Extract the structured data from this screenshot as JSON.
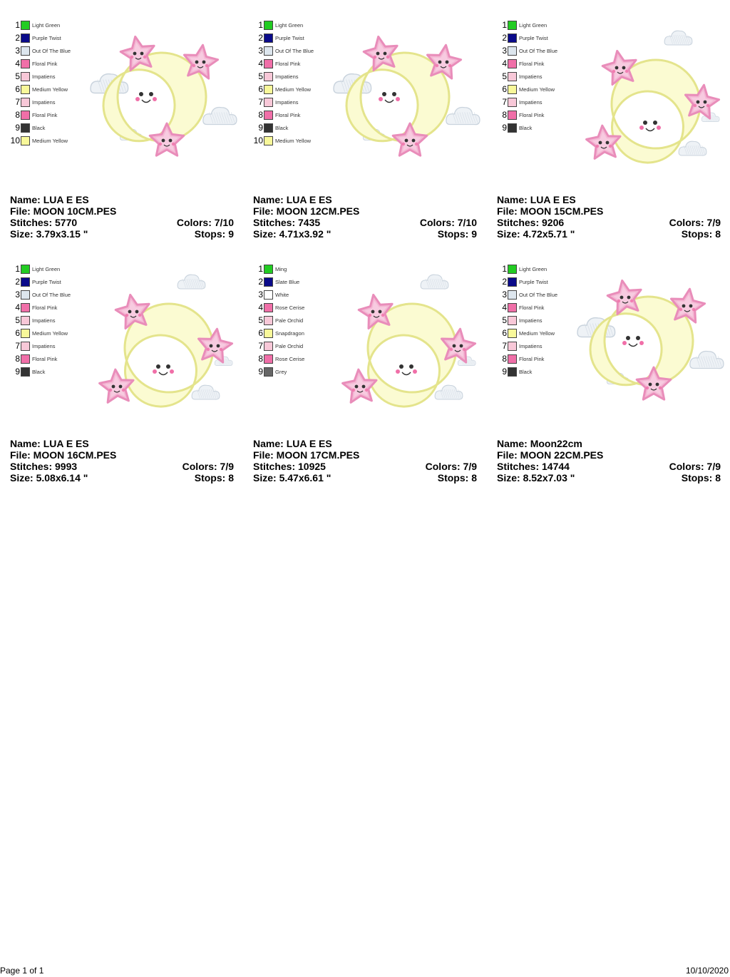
{
  "cards": [
    {
      "name": "LUA E ES",
      "file": "MOON 10CM.PES",
      "stitches": "5770",
      "size": "3.79x3.15 \"",
      "colors": "7/10",
      "stops": "9",
      "art": "cw",
      "threads": [
        {
          "num": "1",
          "name": "Light Green",
          "color": "#22cc22"
        },
        {
          "num": "2",
          "name": "Purple Twist",
          "color": "#0a0a8a"
        },
        {
          "num": "3",
          "name": "Out Of The Blue",
          "color": "#dde6ee"
        },
        {
          "num": "4",
          "name": "Floral Pink",
          "color": "#f06fa8"
        },
        {
          "num": "5",
          "name": "Impatiens",
          "color": "#f8c8d8"
        },
        {
          "num": "6",
          "name": "Medium Yellow",
          "color": "#f8f89a"
        },
        {
          "num": "7",
          "name": "Impatiens",
          "color": "#f8c8d8"
        },
        {
          "num": "8",
          "name": "Floral Pink",
          "color": "#f06fa8"
        },
        {
          "num": "9",
          "name": "Black",
          "color": "#333333"
        },
        {
          "num": "10",
          "name": "Medium Yellow",
          "color": "#f8f89a"
        }
      ]
    },
    {
      "name": "LUA E ES",
      "file": "MOON 12CM.PES",
      "stitches": "7435",
      "size": "4.71x3.92 \"",
      "colors": "7/10",
      "stops": "9",
      "art": "cw",
      "threads": [
        {
          "num": "1",
          "name": "Light Green",
          "color": "#22cc22"
        },
        {
          "num": "2",
          "name": "Purple Twist",
          "color": "#0a0a8a"
        },
        {
          "num": "3",
          "name": "Out Of The Blue",
          "color": "#dde6ee"
        },
        {
          "num": "4",
          "name": "Floral Pink",
          "color": "#f06fa8"
        },
        {
          "num": "5",
          "name": "Impatiens",
          "color": "#f8c8d8"
        },
        {
          "num": "6",
          "name": "Medium Yellow",
          "color": "#f8f89a"
        },
        {
          "num": "7",
          "name": "Impatiens",
          "color": "#f8c8d8"
        },
        {
          "num": "8",
          "name": "Floral Pink",
          "color": "#f06fa8"
        },
        {
          "num": "9",
          "name": "Black",
          "color": "#333333"
        },
        {
          "num": "10",
          "name": "Medium Yellow",
          "color": "#f8f89a"
        }
      ]
    },
    {
      "name": "LUA E ES",
      "file": "MOON 15CM.PES",
      "stitches": "9206",
      "size": "4.72x5.71 \"",
      "colors": "7/9",
      "stops": "8",
      "art": "tilt",
      "threads": [
        {
          "num": "1",
          "name": "Light Green",
          "color": "#22cc22"
        },
        {
          "num": "2",
          "name": "Purple Twist",
          "color": "#0a0a8a"
        },
        {
          "num": "3",
          "name": "Out Of The Blue",
          "color": "#dde6ee"
        },
        {
          "num": "4",
          "name": "Floral Pink",
          "color": "#f06fa8"
        },
        {
          "num": "5",
          "name": "Impatiens",
          "color": "#f8c8d8"
        },
        {
          "num": "6",
          "name": "Medium Yellow",
          "color": "#f8f89a"
        },
        {
          "num": "7",
          "name": "Impatiens",
          "color": "#f8c8d8"
        },
        {
          "num": "8",
          "name": "Floral Pink",
          "color": "#f06fa8"
        },
        {
          "num": "9",
          "name": "Black",
          "color": "#333333"
        }
      ]
    },
    {
      "name": "LUA E ES",
      "file": "MOON 16CM.PES",
      "stitches": "9993",
      "size": "5.08x6.14 \"",
      "colors": "7/9",
      "stops": "8",
      "art": "tilt",
      "threads": [
        {
          "num": "1",
          "name": "Light Green",
          "color": "#22cc22"
        },
        {
          "num": "2",
          "name": "Purple Twist",
          "color": "#0a0a8a"
        },
        {
          "num": "3",
          "name": "Out Of The Blue",
          "color": "#dde6ee"
        },
        {
          "num": "4",
          "name": "Floral Pink",
          "color": "#f06fa8"
        },
        {
          "num": "5",
          "name": "Impatiens",
          "color": "#f8c8d8"
        },
        {
          "num": "6",
          "name": "Medium Yellow",
          "color": "#f8f89a"
        },
        {
          "num": "7",
          "name": "Impatiens",
          "color": "#f8c8d8"
        },
        {
          "num": "8",
          "name": "Floral Pink",
          "color": "#f06fa8"
        },
        {
          "num": "9",
          "name": "Black",
          "color": "#333333"
        }
      ]
    },
    {
      "name": "LUA E ES",
      "file": "MOON 17CM.PES",
      "stitches": "10925",
      "size": "5.47x6.61 \"",
      "colors": "7/9",
      "stops": "8",
      "art": "tilt",
      "threads": [
        {
          "num": "1",
          "name": "Ming",
          "color": "#22cc22"
        },
        {
          "num": "2",
          "name": "Slate Blue",
          "color": "#0a0a8a"
        },
        {
          "num": "3",
          "name": "White",
          "color": "#ffffff"
        },
        {
          "num": "4",
          "name": "Rose Cerise",
          "color": "#f06fa8"
        },
        {
          "num": "5",
          "name": "Pale Orchid",
          "color": "#f8c8d8"
        },
        {
          "num": "6",
          "name": "Snapdragon",
          "color": "#f8f89a"
        },
        {
          "num": "7",
          "name": "Pale Orchid",
          "color": "#f8c8d8"
        },
        {
          "num": "8",
          "name": "Rose Cerise",
          "color": "#f06fa8"
        },
        {
          "num": "9",
          "name": "Grey",
          "color": "#666666"
        }
      ]
    },
    {
      "name": "Moon22cm",
      "file": "MOON 22CM.PES",
      "stitches": "14744",
      "size": "8.52x7.03 \"",
      "colors": "7/9",
      "stops": "8",
      "art": "cw",
      "threads": [
        {
          "num": "1",
          "name": "Light Green",
          "color": "#22cc22"
        },
        {
          "num": "2",
          "name": "Purple Twist",
          "color": "#0a0a8a"
        },
        {
          "num": "3",
          "name": "Out Of The Blue",
          "color": "#dde6ee"
        },
        {
          "num": "4",
          "name": "Floral Pink",
          "color": "#f06fa8"
        },
        {
          "num": "5",
          "name": "Impatiens",
          "color": "#f8c8d8"
        },
        {
          "num": "6",
          "name": "Medium Yellow",
          "color": "#f8f89a"
        },
        {
          "num": "7",
          "name": "Impatiens",
          "color": "#f8c8d8"
        },
        {
          "num": "8",
          "name": "Floral Pink",
          "color": "#f06fa8"
        },
        {
          "num": "9",
          "name": "Black",
          "color": "#333333"
        }
      ]
    }
  ],
  "labels": {
    "name": "Name:",
    "file": "File:",
    "stitches": "Stitches:",
    "size": "Size:",
    "colors": "Colors:",
    "stops": "Stops:"
  },
  "footer": {
    "page": "Page 1 of 1",
    "date": "10/10/2020"
  }
}
